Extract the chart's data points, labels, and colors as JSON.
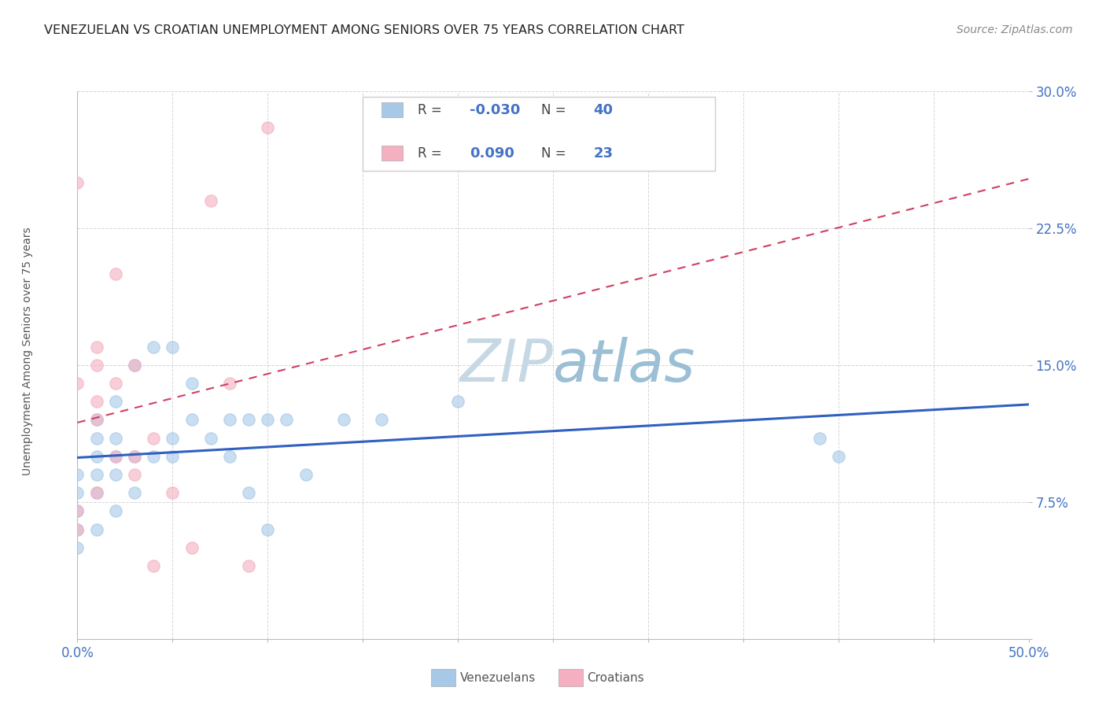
{
  "title": "VENEZUELAN VS CROATIAN UNEMPLOYMENT AMONG SENIORS OVER 75 YEARS CORRELATION CHART",
  "source": "Source: ZipAtlas.com",
  "ylabel": "Unemployment Among Seniors over 75 years",
  "xmin": 0.0,
  "xmax": 0.5,
  "ymin": 0.0,
  "ymax": 0.3,
  "xticks": [
    0.0,
    0.05,
    0.1,
    0.15,
    0.2,
    0.25,
    0.3,
    0.35,
    0.4,
    0.45,
    0.5
  ],
  "yticks": [
    0.0,
    0.075,
    0.15,
    0.225,
    0.3
  ],
  "xtick_labels": [
    "0.0%",
    "",
    "",
    "",
    "",
    "",
    "",
    "",
    "",
    "",
    "50.0%"
  ],
  "ytick_labels": [
    "",
    "7.5%",
    "15.0%",
    "22.5%",
    "30.0%"
  ],
  "venezuelan_R": -0.03,
  "venezuelan_N": 40,
  "croatian_R": 0.09,
  "croatian_N": 23,
  "venezuelan_color": "#a8c8e8",
  "croatian_color": "#f4b0c0",
  "venezuelan_line_color": "#3060c0",
  "croatian_line_color": "#d04060",
  "watermark_zip": "ZIP",
  "watermark_atlas": "atlas",
  "watermark_color_zip": "#b8ccd8",
  "watermark_color_atlas": "#90b4c8",
  "background_color": "#ffffff",
  "venezuelan_x": [
    0.0,
    0.0,
    0.0,
    0.0,
    0.0,
    0.01,
    0.01,
    0.01,
    0.01,
    0.01,
    0.01,
    0.02,
    0.02,
    0.02,
    0.02,
    0.02,
    0.03,
    0.03,
    0.03,
    0.04,
    0.04,
    0.05,
    0.05,
    0.05,
    0.06,
    0.06,
    0.07,
    0.08,
    0.08,
    0.09,
    0.09,
    0.1,
    0.1,
    0.11,
    0.12,
    0.14,
    0.16,
    0.2,
    0.39,
    0.4
  ],
  "venezuelan_y": [
    0.05,
    0.06,
    0.07,
    0.08,
    0.09,
    0.06,
    0.08,
    0.09,
    0.1,
    0.11,
    0.12,
    0.07,
    0.09,
    0.1,
    0.11,
    0.13,
    0.08,
    0.1,
    0.15,
    0.1,
    0.16,
    0.1,
    0.11,
    0.16,
    0.12,
    0.14,
    0.11,
    0.1,
    0.12,
    0.08,
    0.12,
    0.06,
    0.12,
    0.12,
    0.09,
    0.12,
    0.12,
    0.13,
    0.11,
    0.1
  ],
  "croatian_x": [
    0.0,
    0.0,
    0.0,
    0.0,
    0.01,
    0.01,
    0.01,
    0.01,
    0.01,
    0.02,
    0.02,
    0.02,
    0.03,
    0.03,
    0.03,
    0.04,
    0.04,
    0.05,
    0.06,
    0.07,
    0.08,
    0.09,
    0.1
  ],
  "croatian_y": [
    0.06,
    0.07,
    0.14,
    0.25,
    0.08,
    0.12,
    0.13,
    0.15,
    0.16,
    0.1,
    0.14,
    0.2,
    0.09,
    0.1,
    0.15,
    0.11,
    0.04,
    0.08,
    0.05,
    0.24,
    0.14,
    0.04,
    0.28
  ]
}
